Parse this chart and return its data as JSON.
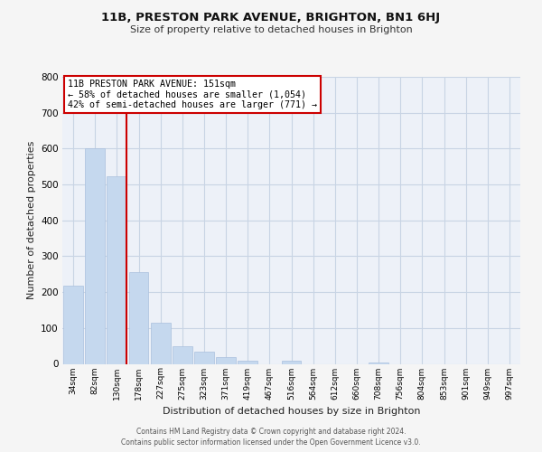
{
  "title": "11B, PRESTON PARK AVENUE, BRIGHTON, BN1 6HJ",
  "subtitle": "Size of property relative to detached houses in Brighton",
  "xlabel": "Distribution of detached houses by size in Brighton",
  "ylabel": "Number of detached properties",
  "bar_labels": [
    "34sqm",
    "82sqm",
    "130sqm",
    "178sqm",
    "227sqm",
    "275sqm",
    "323sqm",
    "371sqm",
    "419sqm",
    "467sqm",
    "516sqm",
    "564sqm",
    "612sqm",
    "660sqm",
    "708sqm",
    "756sqm",
    "804sqm",
    "853sqm",
    "901sqm",
    "949sqm",
    "997sqm"
  ],
  "bar_values": [
    218,
    600,
    522,
    257,
    115,
    50,
    33,
    20,
    10,
    0,
    8,
    0,
    0,
    0,
    5,
    0,
    0,
    0,
    0,
    0,
    0
  ],
  "bar_color": "#c5d8ee",
  "bar_edgecolor": "#aac0dd",
  "ylim": [
    0,
    800
  ],
  "yticks": [
    0,
    100,
    200,
    300,
    400,
    500,
    600,
    700,
    800
  ],
  "vline_color": "#cc0000",
  "annotation_title": "11B PRESTON PARK AVENUE: 151sqm",
  "annotation_line1": "← 58% of detached houses are smaller (1,054)",
  "annotation_line2": "42% of semi-detached houses are larger (771) →",
  "annotation_box_edgecolor": "#cc0000",
  "footer_line1": "Contains HM Land Registry data © Crown copyright and database right 2024.",
  "footer_line2": "Contains public sector information licensed under the Open Government Licence v3.0.",
  "bg_color": "#edf1f8",
  "fig_bg_color": "#f5f5f5",
  "grid_color": "#c8d4e4"
}
